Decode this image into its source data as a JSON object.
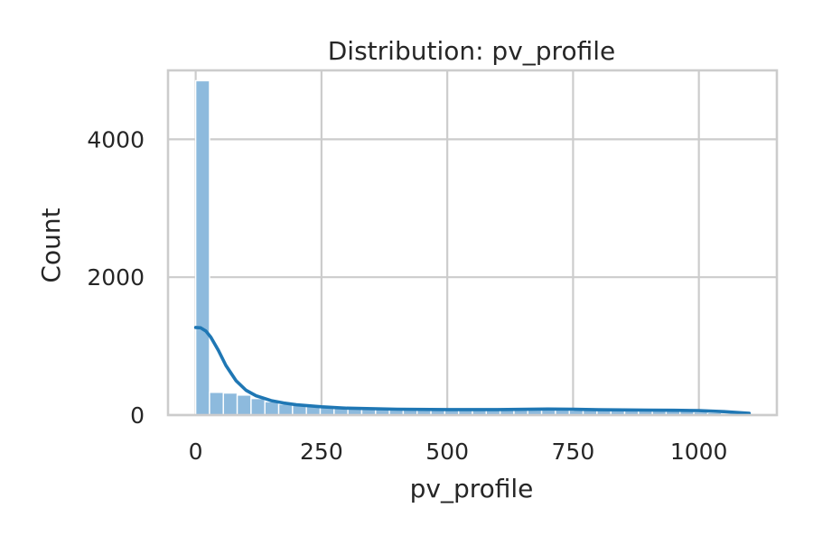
{
  "chart_data": {
    "type": "bar",
    "title": "Distribution: pv_profile",
    "xlabel": "pv_profile",
    "ylabel": "Count",
    "xlim": [
      -55,
      1155
    ],
    "ylim": [
      0,
      5000
    ],
    "xticks": [
      0,
      250,
      500,
      750,
      1000
    ],
    "yticks": [
      0,
      2000,
      4000
    ],
    "grid": true,
    "bar_color": "#8dbadd",
    "bar_edge_color": "#ffffff",
    "kde_color": "#1f77b4",
    "axes_edge_color": "#cccccc",
    "grid_color": "#cccccc",
    "bins": [
      {
        "x0": 0,
        "x1": 27.5,
        "count": 4850
      },
      {
        "x0": 27.5,
        "x1": 55,
        "count": 330
      },
      {
        "x0": 55,
        "x1": 82.5,
        "count": 320
      },
      {
        "x0": 82.5,
        "x1": 110,
        "count": 290
      },
      {
        "x0": 110,
        "x1": 137.5,
        "count": 240
      },
      {
        "x0": 137.5,
        "x1": 165,
        "count": 195
      },
      {
        "x0": 165,
        "x1": 192.5,
        "count": 160
      },
      {
        "x0": 192.5,
        "x1": 220,
        "count": 140
      },
      {
        "x0": 220,
        "x1": 247.5,
        "count": 125
      },
      {
        "x0": 247.5,
        "x1": 275,
        "count": 115
      },
      {
        "x0": 275,
        "x1": 302.5,
        "count": 105
      },
      {
        "x0": 302.5,
        "x1": 330,
        "count": 100
      },
      {
        "x0": 330,
        "x1": 357.5,
        "count": 95
      },
      {
        "x0": 357.5,
        "x1": 385,
        "count": 92
      },
      {
        "x0": 385,
        "x1": 412.5,
        "count": 88
      },
      {
        "x0": 412.5,
        "x1": 440,
        "count": 85
      },
      {
        "x0": 440,
        "x1": 467.5,
        "count": 83
      },
      {
        "x0": 467.5,
        "x1": 495,
        "count": 80
      },
      {
        "x0": 495,
        "x1": 522.5,
        "count": 80
      },
      {
        "x0": 522.5,
        "x1": 550,
        "count": 78
      },
      {
        "x0": 550,
        "x1": 577.5,
        "count": 76
      },
      {
        "x0": 577.5,
        "x1": 605,
        "count": 75
      },
      {
        "x0": 605,
        "x1": 632.5,
        "count": 75
      },
      {
        "x0": 632.5,
        "x1": 660,
        "count": 76
      },
      {
        "x0": 660,
        "x1": 687.5,
        "count": 78
      },
      {
        "x0": 687.5,
        "x1": 715,
        "count": 80
      },
      {
        "x0": 715,
        "x1": 742.5,
        "count": 76
      },
      {
        "x0": 742.5,
        "x1": 770,
        "count": 72
      },
      {
        "x0": 770,
        "x1": 797.5,
        "count": 70
      },
      {
        "x0": 797.5,
        "x1": 825,
        "count": 68
      },
      {
        "x0": 825,
        "x1": 852.5,
        "count": 68
      },
      {
        "x0": 852.5,
        "x1": 880,
        "count": 66
      },
      {
        "x0": 880,
        "x1": 907.5,
        "count": 64
      },
      {
        "x0": 907.5,
        "x1": 935,
        "count": 62
      },
      {
        "x0": 935,
        "x1": 962.5,
        "count": 60
      },
      {
        "x0": 962.5,
        "x1": 990,
        "count": 55
      },
      {
        "x0": 990,
        "x1": 1017.5,
        "count": 45
      },
      {
        "x0": 1017.5,
        "x1": 1045,
        "count": 35
      },
      {
        "x0": 1045,
        "x1": 1072.5,
        "count": 25
      },
      {
        "x0": 1072.5,
        "x1": 1100,
        "count": 15
      }
    ],
    "kde": {
      "x": [
        0,
        10,
        20,
        30,
        45,
        60,
        80,
        100,
        120,
        150,
        175,
        200,
        250,
        300,
        400,
        500,
        600,
        700,
        750,
        800,
        900,
        950,
        1000,
        1050,
        1100
      ],
      "y": [
        1270,
        1265,
        1220,
        1130,
        940,
        720,
        500,
        360,
        280,
        210,
        175,
        150,
        120,
        100,
        85,
        80,
        80,
        88,
        85,
        78,
        72,
        70,
        65,
        50,
        25
      ]
    }
  }
}
